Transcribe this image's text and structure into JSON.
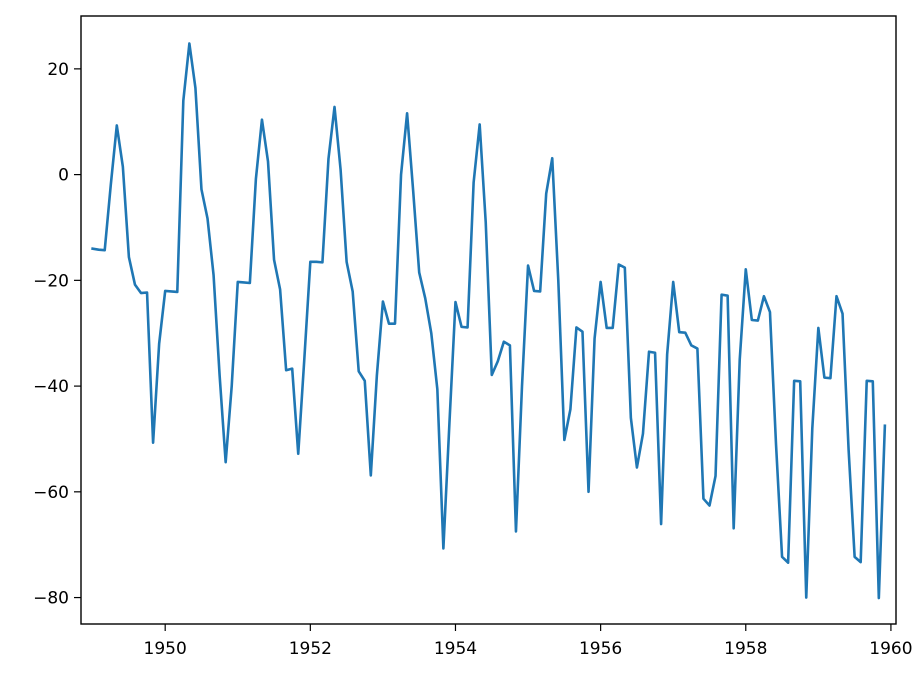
{
  "chart_data": {
    "type": "line",
    "title": "",
    "xlabel": "",
    "ylabel": "",
    "xlim": [
      1948.84,
      1960.07
    ],
    "ylim": [
      -85,
      30
    ],
    "grid": false,
    "legend": "none",
    "x_ticks": [
      1950,
      1952,
      1954,
      1956,
      1958,
      1960
    ],
    "x_tick_labels": [
      "1950",
      "1952",
      "1954",
      "1956",
      "1958",
      "1960"
    ],
    "y_ticks": [
      20,
      0,
      -20,
      -40,
      -60,
      -80
    ],
    "y_tick_labels": [
      "20",
      "0",
      "−20",
      "−40",
      "−60",
      "−80"
    ],
    "series": [
      {
        "color": "#1f77b4",
        "x_start": 1949.0,
        "x_step": 0.0833333,
        "values": [
          -14,
          -14.2,
          -14.3,
          -2,
          9.3,
          1.5,
          -15.6,
          -20.8,
          -22.4,
          -22.3,
          -50.7,
          -32,
          -22,
          -22.1,
          -22.2,
          14,
          24.8,
          16.4,
          -2.8,
          -8.3,
          -19,
          -38,
          -54.4,
          -40,
          -20.3,
          -20.4,
          -20.5,
          -0.8,
          10.4,
          2.5,
          -16.1,
          -21.7,
          -37,
          -36.7,
          -52.8,
          -35,
          -16.5,
          -16.5,
          -16.6,
          3,
          12.8,
          1,
          -16.5,
          -22.1,
          -37.2,
          -39,
          -56.9,
          -38,
          -24,
          -28.2,
          -28.2,
          0,
          11.6,
          -3,
          -18.5,
          -23.4,
          -30,
          -40.6,
          -70.7,
          -47,
          -24.1,
          -28.8,
          -28.9,
          -1.5,
          9.5,
          -9,
          -37.9,
          -35.3,
          -31.6,
          -32.3,
          -67.5,
          -40,
          -17.2,
          -22,
          -22.1,
          -3.6,
          3.1,
          -20,
          -50.2,
          -44.4,
          -28.9,
          -29.7,
          -60,
          -31,
          -20.3,
          -29,
          -29,
          -17,
          -17.6,
          -46,
          -55.4,
          -49,
          -33.5,
          -33.7,
          -66.1,
          -34,
          -20.3,
          -29.8,
          -29.9,
          -32.3,
          -32.9,
          -61.3,
          -62.6,
          -57,
          -22.7,
          -22.9,
          -66.9,
          -35,
          -17.9,
          -27.5,
          -27.6,
          -23,
          -26,
          -51,
          -72.3,
          -73.4,
          -39,
          -39.1,
          -80,
          -48,
          -29,
          -38.4,
          -38.5,
          -23,
          -26.3,
          -52,
          -72.3,
          -73.3,
          -39,
          -39.1,
          -80.1,
          -47.5
        ]
      }
    ]
  }
}
